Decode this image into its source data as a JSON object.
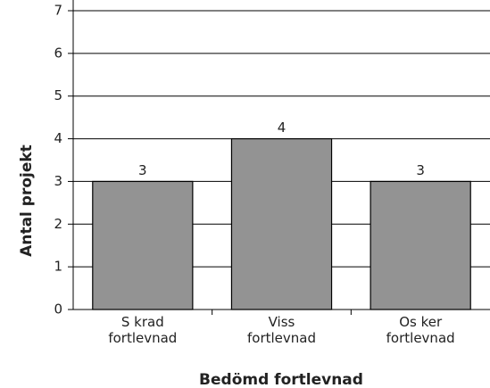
{
  "chart_data": {
    "type": "bar",
    "categories": [
      "S krad fortlevnad",
      "Viss fortlevnad",
      "Os ker fortlevnad"
    ],
    "values": [
      3,
      4,
      3
    ],
    "color": "#939393",
    "ylim": [
      0,
      7
    ],
    "yticks": [
      0,
      1,
      2,
      3,
      4,
      5,
      6,
      7
    ],
    "grid": true,
    "x_label": "Bedömd fortlevnad",
    "y_label": "Antal projekt"
  }
}
